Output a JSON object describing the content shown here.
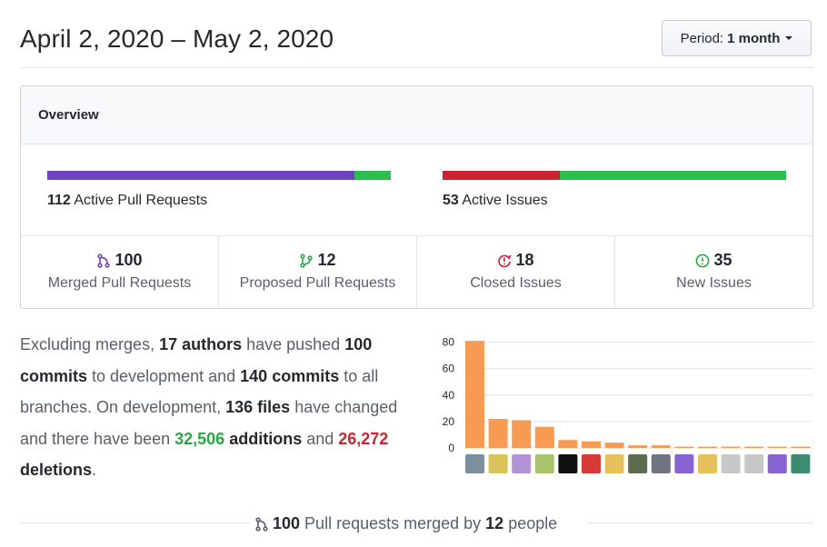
{
  "header": {
    "date_range": "April 2, 2020 – May 2, 2020",
    "period_prefix": "Period:",
    "period_value": "1 month"
  },
  "overview": {
    "title": "Overview",
    "pull_requests": {
      "count": "112",
      "label": "Active Pull Requests",
      "merged_fraction": 0.893,
      "colors": [
        "#6f42c1",
        "#2cbe4e"
      ]
    },
    "issues": {
      "count": "53",
      "label": "Active Issues",
      "closed_fraction": 0.34,
      "colors": [
        "#cb2431",
        "#2cbe4e"
      ]
    },
    "stats": [
      {
        "value": "100",
        "label": "Merged Pull Requests",
        "icon": "git-merge-icon",
        "color": "#6f42c1"
      },
      {
        "value": "12",
        "label": "Proposed Pull Requests",
        "icon": "git-pull-request-icon",
        "color": "#28a745"
      },
      {
        "value": "18",
        "label": "Closed Issues",
        "icon": "issue-closed-icon",
        "color": "#cb2431"
      },
      {
        "value": "35",
        "label": "New Issues",
        "icon": "issue-opened-icon",
        "color": "#28a745"
      }
    ]
  },
  "summary": {
    "t1": "Excluding merges, ",
    "authors": "17 authors",
    "t2": " have pushed ",
    "commits_count": "100 commits",
    "t3": " to development and ",
    "all_commits": "140 commits",
    "t4": " to all branches. On development, ",
    "files": "136 files",
    "t5": " have changed and there have been ",
    "additions_num": "32,506",
    "additions_word": " additions",
    "t6": " and ",
    "deletions_num": "26,272",
    "deletions_word": " deletions",
    "t7": "."
  },
  "chart_data": {
    "type": "bar",
    "values": [
      81,
      22,
      21,
      16,
      6,
      5,
      4,
      2,
      2,
      1,
      1,
      1,
      1,
      1,
      1
    ],
    "y_ticks": [
      "0",
      "20",
      "40",
      "60",
      "80"
    ],
    "ylim": [
      0,
      90
    ],
    "bar_color": "#f79b54",
    "avatar_colors": [
      "#7b8f9e",
      "#d8c45a",
      "#b392d6",
      "#a7c46a",
      "#111111",
      "#d83a3a",
      "#e6c05a",
      "#5d6b4f",
      "#6f7580",
      "#8a63d2",
      "#e6c05a",
      "#c7c7c7",
      "#c7c7c7",
      "#8a63d2",
      "#3d8b72"
    ]
  },
  "footer": {
    "merged_count": "100",
    "t1": " Pull requests merged by ",
    "people_count": "12",
    "t2": " people"
  }
}
